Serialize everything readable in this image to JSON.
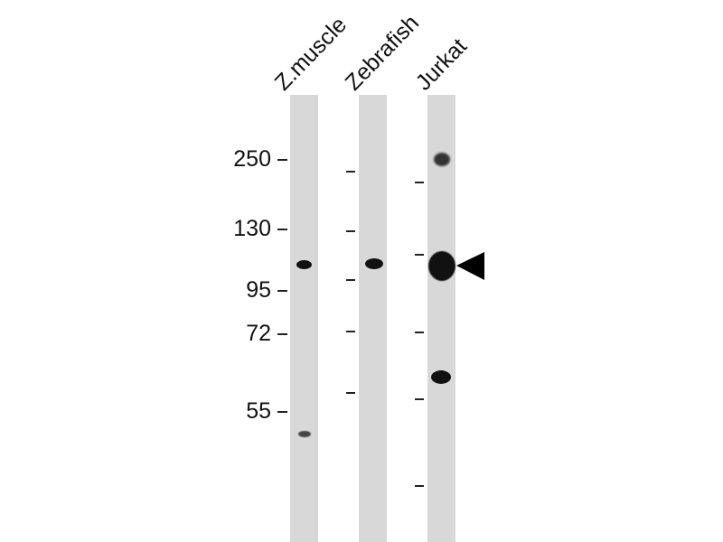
{
  "lanes": [
    {
      "label": "Z.muscle"
    },
    {
      "label": "Zebrafish"
    },
    {
      "label": "Jurkat"
    }
  ],
  "mw_markers": [
    "250",
    "130",
    "95",
    "72",
    "55"
  ],
  "arrow_icon": "left-pointing-triangle",
  "colors": {
    "lane": "#d8d8d8",
    "band": "#111111"
  }
}
